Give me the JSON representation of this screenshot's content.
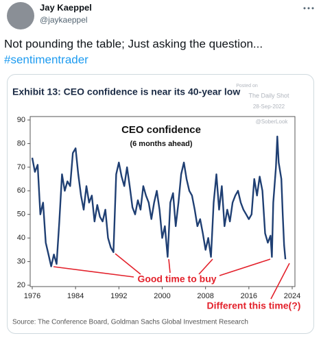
{
  "author": {
    "name": "Jay Kaeppel",
    "handle": "@jaykaeppel"
  },
  "tweet": {
    "text": "Not pounding the table; Just asking the question...",
    "hashtag": "#sentimentrader"
  },
  "chart_data": {
    "type": "line",
    "title": "Exhibit 13: CEO confidence is near its 40-year low",
    "watermark": [
      "Posted on",
      "The Daily Shot",
      "28-Sep-2022",
      "@SoberLook"
    ],
    "series_title": "CEO confidence",
    "series_subtitle": "(6 months ahead)",
    "annotations": [
      "Good time to buy",
      "Different this time(?)"
    ],
    "source": "Source: The Conference Board, Goldman Sachs Global Investment Research",
    "x": [
      1976,
      1976.5,
      1977,
      1977.5,
      1978,
      1978.5,
      1979,
      1979.5,
      1980,
      1980.5,
      1981,
      1981.5,
      1982,
      1982.5,
      1983,
      1983.5,
      1984,
      1984.5,
      1985,
      1985.5,
      1986,
      1986.5,
      1987,
      1987.5,
      1988,
      1988.5,
      1989,
      1989.5,
      1990,
      1990.5,
      1991,
      1991.5,
      1992,
      1992.5,
      1993,
      1993.5,
      1994,
      1994.5,
      1995,
      1995.5,
      1996,
      1996.5,
      1997,
      1997.5,
      1998,
      1998.5,
      1999,
      1999.5,
      2000,
      2000.5,
      2001,
      2001.5,
      2002,
      2002.5,
      2003,
      2003.5,
      2004,
      2004.5,
      2005,
      2005.5,
      2006,
      2006.5,
      2007,
      2007.5,
      2008,
      2008.5,
      2009,
      2009.5,
      2010,
      2010.5,
      2011,
      2011.5,
      2012,
      2012.5,
      2013,
      2013.5,
      2014,
      2014.5,
      2015,
      2015.5,
      2016,
      2016.5,
      2017,
      2017.5,
      2018,
      2018.5,
      2019,
      2019.5,
      2020,
      2020.25,
      2020.5,
      2021,
      2021.25,
      2021.5,
      2022,
      2022.25,
      2022.5,
      2022.75
    ],
    "series": [
      {
        "name": "CEO confidence",
        "color": "#1f3f73",
        "values": [
          74,
          68,
          71,
          50,
          55,
          38,
          33,
          28,
          33,
          29,
          47,
          67,
          60,
          64,
          62,
          76,
          78,
          67,
          58,
          52,
          62,
          55,
          58,
          47,
          54,
          49,
          47,
          52,
          40,
          36,
          34,
          67,
          72,
          66,
          62,
          70,
          62,
          53,
          50,
          56,
          52,
          62,
          58,
          55,
          48,
          55,
          60,
          52,
          40,
          45,
          32,
          55,
          59,
          45,
          55,
          67,
          72,
          65,
          60,
          58,
          52,
          45,
          48,
          42,
          35,
          40,
          32,
          55,
          67,
          52,
          62,
          45,
          52,
          47,
          55,
          58,
          60,
          55,
          52,
          50,
          48,
          50,
          65,
          58,
          66,
          60,
          42,
          38,
          41,
          32,
          55,
          70,
          83,
          72,
          65,
          50,
          37,
          31
        ]
      }
    ],
    "xlim": [
      1976,
      2024
    ],
    "xticks": [
      1976,
      1984,
      1992,
      2000,
      2008,
      2016,
      2024
    ],
    "ylim": [
      20,
      90
    ],
    "yticks": [
      20,
      30,
      40,
      50,
      60,
      70,
      80,
      90
    ],
    "annotation_color": "#e3212b"
  }
}
